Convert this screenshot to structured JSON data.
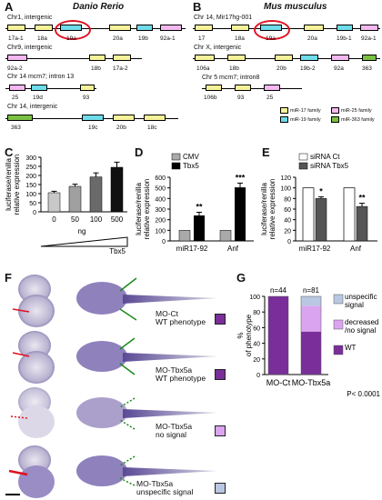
{
  "panels": {
    "A": {
      "label": "A",
      "title": "Danio Rerio",
      "rows": [
        {
          "locus": "Chr1, intergenic",
          "genes": [
            {
              "name": "17a-1",
              "family": "mir-17"
            },
            {
              "name": "18a",
              "family": "mir-17"
            },
            {
              "name": "19a",
              "family": "mir-19"
            },
            {
              "name": "20a",
              "family": "mir-17"
            },
            {
              "name": "19b",
              "family": "mir-19"
            },
            {
              "name": "92a-1",
              "family": "mir-25"
            }
          ]
        },
        {
          "locus": "Chr9, intergenic",
          "genes": [
            {
              "name": "92a-2",
              "family": "mir-25"
            },
            {
              "name": "18b",
              "family": "mir-17"
            },
            {
              "name": "17a-2",
              "family": "mir-17"
            }
          ]
        },
        {
          "locus": "Chr 14 mcm7; intron 13",
          "genes": [
            {
              "name": "25",
              "family": "mir-25"
            },
            {
              "name": "19d",
              "family": "mir-19"
            },
            {
              "name": "93",
              "family": "mir-17"
            }
          ]
        },
        {
          "locus": "Chr 14, intergenic",
          "genes": [
            {
              "name": "363",
              "family": "mir-363"
            },
            {
              "name": "19c",
              "family": "mir-19"
            },
            {
              "name": "20b",
              "family": "mir-17"
            },
            {
              "name": "18c",
              "family": "mir-17"
            }
          ]
        }
      ]
    },
    "B": {
      "label": "B",
      "title": "Mus musculus",
      "rows": [
        {
          "locus": "Chr 14, Mir17hg-001",
          "genes": [
            {
              "name": "17",
              "family": "mir-17"
            },
            {
              "name": "18a",
              "family": "mir-17"
            },
            {
              "name": "19a",
              "family": "mir-19"
            },
            {
              "name": "20a",
              "family": "mir-17"
            },
            {
              "name": "19b-1",
              "family": "mir-19"
            },
            {
              "name": "92a-1",
              "family": "mir-25"
            }
          ]
        },
        {
          "locus": "Chr X, intergenic",
          "genes": [
            {
              "name": "106a",
              "family": "mir-17"
            },
            {
              "name": "18b",
              "family": "mir-17"
            },
            {
              "name": "20b",
              "family": "mir-17"
            },
            {
              "name": "19b-2",
              "family": "mir-19"
            },
            {
              "name": "92a",
              "family": "mir-25"
            },
            {
              "name": "363",
              "family": "mir-363"
            }
          ]
        },
        {
          "locus": "Chr 5 mcm7; intron8",
          "genes": [
            {
              "name": "106b",
              "family": "mir-17"
            },
            {
              "name": "93",
              "family": "mir-17"
            },
            {
              "name": "25",
              "family": "mir-25"
            }
          ]
        }
      ],
      "legend": [
        {
          "label": "miR-17 family",
          "color": "#f6f29a"
        },
        {
          "label": "miR-25 family",
          "color": "#f4b8f0"
        },
        {
          "label": "miR-19 family",
          "color": "#6fdcea"
        },
        {
          "label": "miR-363 family",
          "color": "#7bc043"
        }
      ]
    },
    "F": {
      "label": "F",
      "rows": [
        {
          "line1": "MO-Ct",
          "line2": "WT phenotype",
          "color": "#7a2e9a"
        },
        {
          "line1": "MO-Tbx5a",
          "line2": "WT phenotype",
          "color": "#7a2e9a"
        },
        {
          "line1": "MO-Tbx5a",
          "line2": "no signal",
          "color": "#dba4f0"
        },
        {
          "line1": "MO-Tbx5a",
          "line2": "unspecific signal",
          "color": "#b9c8e2"
        }
      ]
    }
  },
  "chart_data": [
    {
      "panel": "C",
      "type": "bar",
      "ylabel": "luciferase/renilla relative expression",
      "categories": [
        "0",
        "50",
        "100",
        "500"
      ],
      "values": [
        105,
        140,
        192,
        245
      ],
      "errors": [
        8,
        12,
        22,
        28
      ],
      "ylim": [
        0,
        300
      ],
      "yticks": [
        0,
        50,
        100,
        150,
        200,
        250,
        300
      ],
      "xlabel_unit": "ng",
      "wedge_label": "Tbx5",
      "colors": [
        "#c8c8c8",
        "#a0a0a0",
        "#6a6a6a",
        "#111111"
      ]
    },
    {
      "panel": "D",
      "type": "bar",
      "ylabel": "luciferase/renilla relative expression",
      "legend": [
        {
          "label": "CMV",
          "color": "#aaaaaa"
        },
        {
          "label": "Tbx5",
          "color": "#000000"
        }
      ],
      "categories": [
        "miR17-92",
        "Anf"
      ],
      "series": [
        {
          "name": "CMV",
          "values": [
            100,
            100
          ]
        },
        {
          "name": "Tbx5",
          "values": [
            240,
            505
          ]
        }
      ],
      "errors_tbx5": [
        30,
        40
      ],
      "significance": [
        "**",
        "***"
      ],
      "ylim": [
        0,
        600
      ],
      "yticks": [
        0,
        100,
        200,
        300,
        400,
        500,
        600
      ]
    },
    {
      "panel": "E",
      "type": "bar",
      "ylabel": "luciferase/renilla relative expression",
      "legend": [
        {
          "label": "siRNA Ct",
          "color": "#ffffff"
        },
        {
          "label": "siRNA Tbx5",
          "color": "#555555"
        }
      ],
      "categories": [
        "miR17-92",
        "Anf"
      ],
      "series": [
        {
          "name": "siRNA Ct",
          "values": [
            100,
            100
          ]
        },
        {
          "name": "siRNA Tbx5",
          "values": [
            80,
            65
          ]
        }
      ],
      "errors_tbx5": [
        3,
        6
      ],
      "significance": [
        "*",
        "**"
      ],
      "ylim": [
        0,
        120
      ],
      "yticks": [
        0,
        20,
        40,
        60,
        80,
        100,
        120
      ]
    },
    {
      "panel": "G",
      "type": "bar",
      "stacked": true,
      "ylabel": "% of phenotype",
      "categories": [
        "MO-Ct",
        "MO-Tbx5a"
      ],
      "n_labels": [
        "n=44",
        "n=81"
      ],
      "series": [
        {
          "name": "WT",
          "values": [
            100,
            55
          ],
          "color": "#7a2e9a"
        },
        {
          "name": "decreased /no signal",
          "values": [
            0,
            33
          ],
          "color": "#dba4f0"
        },
        {
          "name": "unspecific signal",
          "values": [
            0,
            12
          ],
          "color": "#b9c8e2"
        }
      ],
      "legend": [
        {
          "label": "unspecific\nsignal",
          "color": "#b9c8e2"
        },
        {
          "label": "decreased\n/no signal",
          "color": "#dba4f0"
        },
        {
          "label": "WT",
          "color": "#7a2e9a"
        }
      ],
      "pvalue": "P< 0.0001",
      "ylim": [
        0,
        100
      ],
      "yticks": [
        0,
        20,
        40,
        60,
        80,
        100
      ]
    }
  ]
}
